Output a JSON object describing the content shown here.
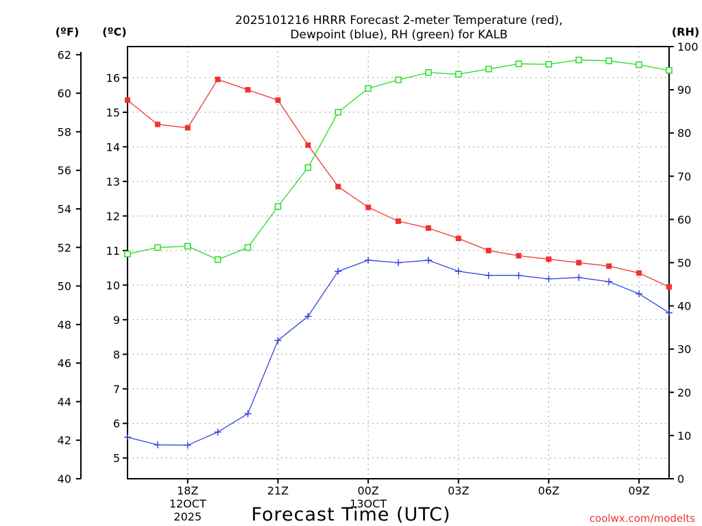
{
  "title": {
    "line1": "2025101216 HRRR Forecast 2-meter Temperature (red),",
    "line2": "Dewpoint (blue), RH (green) for KALB"
  },
  "units": {
    "fahrenheit": "(ºF)",
    "celsius": "(ºC)",
    "rh": "(RH)"
  },
  "xlabel": "Forecast Time (UTC)",
  "credit": "coolwx.com/modelts",
  "colors": {
    "temperature": "#ee3333",
    "dewpoint": "#3344dd",
    "rh": "#22dd22",
    "grid": "#999999"
  },
  "chart_data": {
    "type": "line",
    "x_hours": [
      16,
      17,
      18,
      19,
      20,
      21,
      22,
      23,
      24,
      25,
      26,
      27,
      28,
      29,
      30,
      31,
      32,
      33,
      34
    ],
    "x_range": [
      16,
      34
    ],
    "x_ticks": [
      {
        "hour": 18,
        "label": "18Z",
        "sub1": "12OCT",
        "sub2": "2025"
      },
      {
        "hour": 21,
        "label": "21Z",
        "sub1": "",
        "sub2": ""
      },
      {
        "hour": 24,
        "label": "00Z",
        "sub1": "13OCT",
        "sub2": ""
      },
      {
        "hour": 27,
        "label": "03Z",
        "sub1": "",
        "sub2": ""
      },
      {
        "hour": 30,
        "label": "06Z",
        "sub1": "",
        "sub2": ""
      },
      {
        "hour": 33,
        "label": "09Z",
        "sub1": "",
        "sub2": ""
      }
    ],
    "celsius_axis": {
      "range": [
        4.4,
        16.9
      ],
      "ticks": [
        5,
        6,
        7,
        8,
        9,
        10,
        11,
        12,
        13,
        14,
        15,
        16
      ]
    },
    "fahrenheit_axis": {
      "range": [
        40,
        62.42
      ],
      "ticks": [
        40,
        42,
        44,
        46,
        48,
        50,
        52,
        54,
        56,
        58,
        60,
        62
      ]
    },
    "rh_axis": {
      "range": [
        0,
        100
      ],
      "ticks": [
        0,
        10,
        20,
        30,
        40,
        50,
        60,
        70,
        80,
        90,
        100
      ]
    },
    "series": [
      {
        "name": "Temperature",
        "axis": "celsius",
        "marker": "filled-square",
        "values": [
          15.35,
          14.65,
          14.55,
          15.95,
          15.65,
          15.35,
          14.05,
          12.85,
          12.25,
          11.85,
          11.65,
          11.35,
          11.0,
          10.85,
          10.75,
          10.65,
          10.55,
          10.35,
          9.95
        ]
      },
      {
        "name": "Dewpoint",
        "axis": "celsius",
        "marker": "plus",
        "values": [
          5.6,
          5.38,
          5.37,
          5.75,
          6.28,
          8.4,
          9.1,
          10.4,
          10.72,
          10.65,
          10.72,
          10.4,
          10.28,
          10.28,
          10.18,
          10.22,
          10.1,
          9.75,
          9.2
        ]
      },
      {
        "name": "RH",
        "axis": "rh",
        "marker": "open-square",
        "values": [
          52,
          53.5,
          53.8,
          50.7,
          53.5,
          63,
          72,
          84.8,
          90.3,
          92.3,
          94,
          93.6,
          94.8,
          96,
          95.9,
          96.9,
          96.7,
          95.8,
          94.5
        ]
      }
    ]
  }
}
